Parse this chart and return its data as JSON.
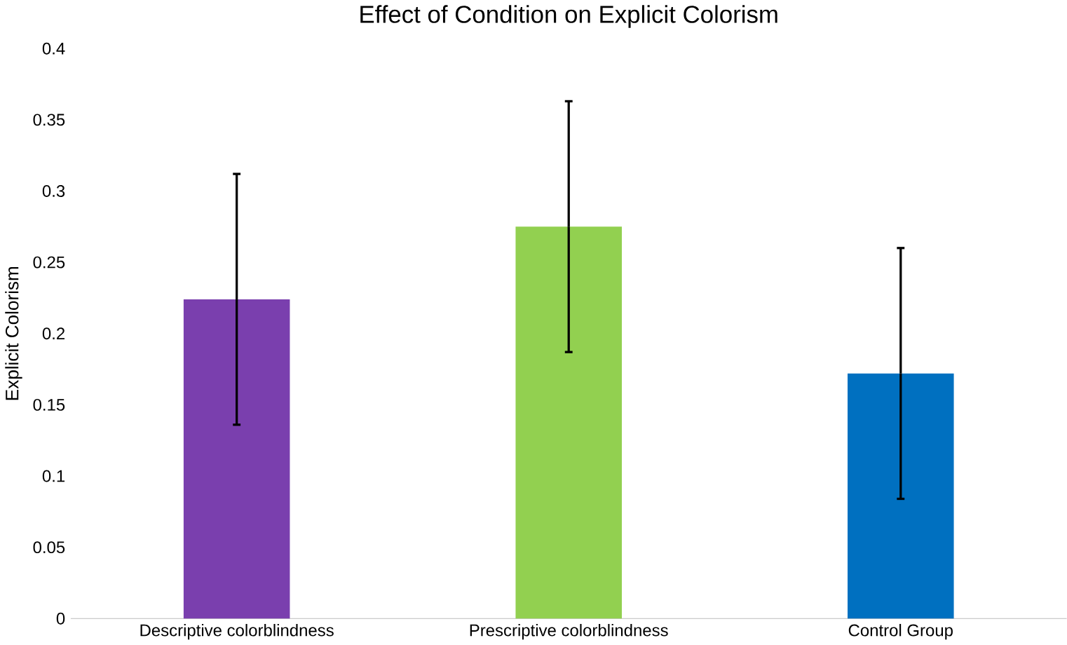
{
  "chart_data": {
    "type": "bar",
    "title": "Effect of Condition on Explicit Colorism",
    "ylabel": "Explicit Colorism",
    "categories": [
      "Descriptive colorblindness",
      "Prescriptive colorblindness",
      "Control Group"
    ],
    "values": [
      0.224,
      0.275,
      0.172
    ],
    "colors": [
      "#7a3fae",
      "#92d050",
      "#0070c0"
    ],
    "errors": [
      0.088,
      0.088,
      0.088
    ],
    "ylim": [
      0,
      0.4
    ],
    "yticks": [
      0,
      0.05,
      0.1,
      0.15,
      0.2,
      0.25,
      0.3,
      0.35,
      0.4
    ]
  }
}
